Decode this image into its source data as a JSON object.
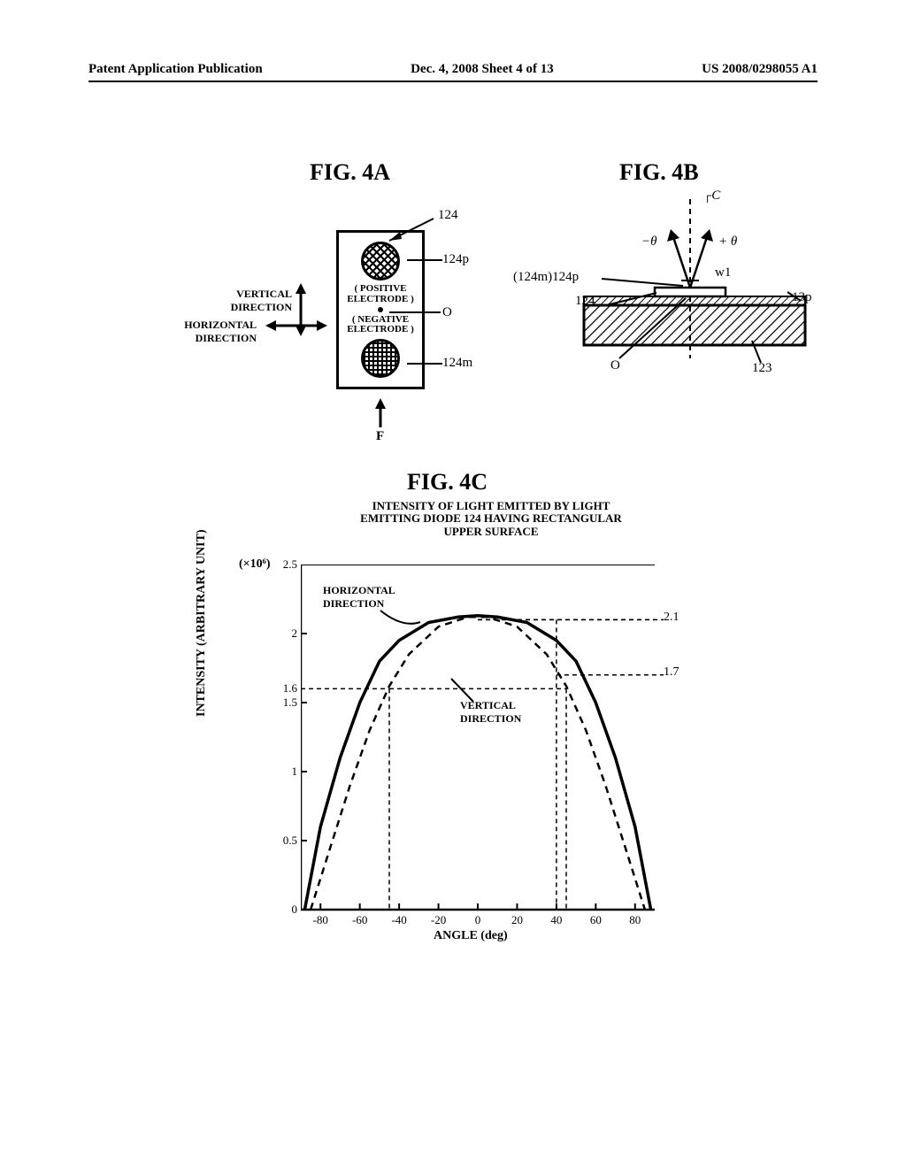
{
  "header": {
    "left": "Patent Application Publication",
    "center": "Dec. 4, 2008  Sheet 4 of 13",
    "right": "US 2008/0298055 A1"
  },
  "fig4a": {
    "title": "FIG. 4A",
    "ref_124": "124",
    "ref_124p": "124p",
    "ref_O": "O",
    "ref_124m": "124m",
    "ref_F": "F",
    "pos_label": "POSITIVE\nELECTRODE",
    "neg_label": "NEGATIVE\nELECTRODE",
    "vert_label": "VERTICAL\nDIRECTION",
    "horiz_label": "HORIZONTAL\nDIRECTION"
  },
  "fig4b": {
    "title": "FIG. 4B",
    "ref_C": "C",
    "ref_minus_theta": "−θ",
    "ref_plus_theta": "+ θ",
    "ref_124m124p": "(124m)124p",
    "ref_w1": "w1",
    "ref_13p": "13p",
    "ref_124": "124",
    "ref_O": "O",
    "ref_123": "123"
  },
  "fig4c": {
    "title": "FIG. 4C",
    "chart_title": "INTENSITY OF LIGHT EMITTED BY LIGHT EMITTING DIODE 124 HAVING RECTANGULAR UPPER SURFACE",
    "ylabel": "INTENSITY (ARBITRARY UNIT)",
    "xlabel": "ANGLE (deg)",
    "y_mult": "(×10⁶)",
    "legend_h": "HORIZONTAL\nDIRECTION",
    "legend_v": "VERTICAL\nDIRECTION",
    "ref_21": "2.1",
    "ref_17": "1.7",
    "xlim": [
      -90,
      90
    ],
    "ylim": [
      0,
      2.5
    ],
    "xticks": [
      -80,
      -60,
      -40,
      -20,
      0,
      20,
      40,
      60,
      80
    ],
    "yticks_left": [
      0,
      0.5,
      1,
      1.5,
      1.6,
      2,
      2.5
    ],
    "horizontal_curve": [
      [
        -88,
        0
      ],
      [
        -80,
        0.6
      ],
      [
        -70,
        1.1
      ],
      [
        -60,
        1.5
      ],
      [
        -50,
        1.8
      ],
      [
        -40,
        1.95
      ],
      [
        -25,
        2.08
      ],
      [
        -10,
        2.12
      ],
      [
        0,
        2.13
      ],
      [
        10,
        2.12
      ],
      [
        25,
        2.08
      ],
      [
        40,
        1.95
      ],
      [
        50,
        1.8
      ],
      [
        60,
        1.5
      ],
      [
        70,
        1.1
      ],
      [
        80,
        0.6
      ],
      [
        88,
        0
      ]
    ],
    "vertical_curve": [
      [
        -85,
        0
      ],
      [
        -75,
        0.45
      ],
      [
        -65,
        0.9
      ],
      [
        -55,
        1.3
      ],
      [
        -45,
        1.62
      ],
      [
        -35,
        1.85
      ],
      [
        -20,
        2.05
      ],
      [
        -5,
        2.12
      ],
      [
        5,
        2.12
      ],
      [
        20,
        2.05
      ],
      [
        35,
        1.85
      ],
      [
        45,
        1.62
      ],
      [
        55,
        1.3
      ],
      [
        65,
        0.9
      ],
      [
        75,
        0.45
      ],
      [
        85,
        0
      ]
    ],
    "hline_16_x": [
      -45,
      45
    ],
    "hline_21_x": 40,
    "hline_17_x": 40,
    "colors": {
      "bg": "#ffffff",
      "stroke": "#000000"
    }
  }
}
